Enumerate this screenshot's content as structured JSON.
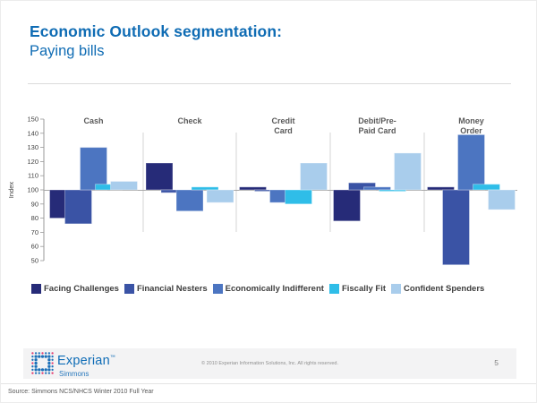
{
  "slide": {
    "title_bold": "Economic Outlook segmentation:",
    "title_sub": "Paying bills",
    "page_number": "5",
    "copyright": "© 2010 Experian Information Solutions, Inc.  All rights reserved.",
    "source": "Source:  Simmons NCS/NHCS Winter 2010 Full Year",
    "logo": {
      "brand": "Experian",
      "tm": "™",
      "sub_brand": "Simmons"
    }
  },
  "colors": {
    "title_blue": "#0F6CB4",
    "category_label_gray": "#595959",
    "axis_gray": "#9A9A9A",
    "logo_red": "#E23A6E",
    "logo_blue": "#1B6FB8"
  },
  "chart_data": {
    "type": "bar",
    "title": "",
    "xlabel": "",
    "ylabel": "Index",
    "baseline": 100,
    "ylim": [
      50,
      150
    ],
    "ytick_step": 10,
    "grid": false,
    "legend_position": "bottom",
    "categories": [
      "Cash",
      "Check",
      "Credit\nCard",
      "Debit/Pre-\nPaid Card",
      "Money\nOrder"
    ],
    "series": [
      {
        "name": "Facing Challenges",
        "color": "#262B78",
        "values": [
          80,
          119,
          102,
          78,
          102
        ]
      },
      {
        "name": "Financial Nesters",
        "color": "#3A53A5",
        "values": [
          76,
          98,
          99,
          105,
          47
        ]
      },
      {
        "name": "Economically Indifferent",
        "color": "#4C75C1",
        "values": [
          130,
          85,
          91,
          102,
          139
        ]
      },
      {
        "name": "Fiscally Fit",
        "color": "#2FBDE8",
        "values": [
          104,
          102,
          90,
          99,
          104
        ]
      },
      {
        "name": "Confident Spenders",
        "color": "#A9CDEC",
        "values": [
          106,
          91,
          119,
          126,
          86
        ]
      }
    ]
  }
}
